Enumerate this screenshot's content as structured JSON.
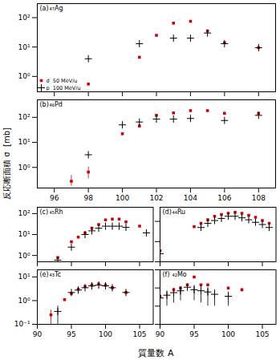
{
  "chart_data": [
    {
      "type": "scatter",
      "annotations": [
        "(a)",
        "₄₇Ag"
      ],
      "x_label": "質量数 A",
      "y_label": "反応断面積 σ  [mb]",
      "log": "y",
      "grid": false,
      "legend": "lower left",
      "tick_labels": "y",
      "xlim": [
        95,
        109
      ],
      "ylim": [
        0.3,
        300
      ],
      "xticks": [
        96,
        98,
        100,
        102,
        104,
        106,
        108
      ],
      "yticks": [
        {
          "value": 1,
          "label": "10⁰"
        },
        {
          "value": 10,
          "label": "10¹"
        },
        {
          "value": 100,
          "label": "10²"
        }
      ],
      "series": [
        {
          "name": "d  50 MeV/u",
          "color": "#cc0000",
          "marker": "square",
          "x": [
            98,
            101,
            102,
            103,
            104,
            105,
            106,
            108
          ],
          "values": [
            0.55,
            4.5,
            25,
            65,
            75,
            35,
            14,
            9.5
          ],
          "yerr_lo": [
            0,
            0,
            0,
            0,
            0,
            0,
            0,
            0
          ],
          "yerr_hi": [
            0,
            0,
            0,
            0,
            0,
            0,
            0,
            0
          ]
        },
        {
          "name": "p  100 MeV/u",
          "color": "#000000",
          "marker": "plus",
          "x": [
            98,
            101,
            103,
            104,
            105,
            106,
            108
          ],
          "values": [
            4.0,
            13,
            20,
            20,
            30,
            13,
            9.5
          ],
          "yerr_lo": [
            0,
            0,
            0,
            0,
            0,
            0,
            0
          ],
          "yerr_hi": [
            0,
            0,
            0,
            0,
            0,
            0,
            0
          ]
        }
      ]
    },
    {
      "type": "scatter",
      "annotations": [
        "(b)",
        "₄₆Pd"
      ],
      "log": "y",
      "grid": false,
      "xlim": [
        95,
        109
      ],
      "ylim": [
        0.15,
        500
      ],
      "xticks": [
        96,
        98,
        100,
        102,
        104,
        106,
        108
      ],
      "yticks": [
        {
          "value": 1,
          "label": "10⁰"
        },
        {
          "value": 10,
          "label": "10¹"
        },
        {
          "value": 100,
          "label": "10²"
        }
      ],
      "series": [
        {
          "name": "d  50 MeV/u",
          "color": "#cc0000",
          "marker": "square",
          "x": [
            97,
            98,
            100,
            101,
            102,
            103,
            104,
            105,
            106,
            108
          ],
          "values": [
            0.28,
            0.65,
            22,
            45,
            120,
            150,
            185,
            185,
            145,
            145
          ],
          "yerr_lo": [
            0.1,
            0.3,
            0,
            0,
            0,
            0,
            0,
            0,
            0,
            0
          ],
          "yerr_hi": [
            0.2,
            0.4,
            0,
            0,
            0,
            0,
            0,
            0,
            0,
            0
          ]
        },
        {
          "name": "p  100 MeV/u",
          "color": "#000000",
          "marker": "plus",
          "x": [
            98,
            100,
            101,
            102,
            103,
            104,
            106,
            108
          ],
          "values": [
            3.2,
            50,
            65,
            85,
            85,
            90,
            75,
            120
          ],
          "yerr_lo": [
            0,
            0,
            0,
            0,
            0,
            0,
            0,
            0
          ],
          "yerr_hi": [
            0,
            0,
            0,
            0,
            0,
            0,
            0,
            0
          ]
        }
      ]
    },
    {
      "type": "scatter",
      "annotations": [
        "(c)",
        "₄₅Rh"
      ],
      "log": "y",
      "grid": false,
      "tick_labels": "y",
      "xlim": [
        90,
        107
      ],
      "ylim": [
        0.5,
        200
      ],
      "xticks": [
        90,
        95,
        100,
        105
      ],
      "yticks": [
        {
          "value": 1,
          "label": "10⁰"
        },
        {
          "value": 10,
          "label": "10¹"
        },
        {
          "value": 100,
          "label": "10²"
        }
      ],
      "series": [
        {
          "name": "d  50 MeV/u",
          "color": "#cc0000",
          "marker": "square",
          "x": [
            93,
            95,
            96,
            97,
            98,
            99,
            100,
            101,
            102,
            103,
            105
          ],
          "values": [
            0.8,
            4.5,
            7.5,
            12,
            20,
            30,
            50,
            55,
            55,
            40,
            25
          ],
          "yerr_lo": [
            0,
            0,
            0,
            0,
            0,
            0,
            0,
            0,
            0,
            0,
            0
          ],
          "yerr_hi": [
            0,
            0,
            0,
            0,
            0,
            0,
            0,
            0,
            0,
            0,
            0
          ]
        },
        {
          "name": "p  100 MeV/u",
          "color": "#000000",
          "marker": "plus",
          "x": [
            93,
            95,
            97,
            98,
            99,
            100,
            101,
            102,
            103,
            106
          ],
          "values": [
            0.6,
            2.5,
            10,
            15,
            20,
            25,
            25,
            25,
            22,
            12
          ],
          "yerr_lo": [
            0,
            0,
            0,
            0,
            0,
            0,
            0,
            0,
            0,
            0
          ],
          "yerr_hi": [
            0,
            0,
            0,
            0,
            0,
            0,
            0,
            0,
            0,
            0
          ]
        }
      ]
    },
    {
      "type": "scatter",
      "annotations": [
        "(d)",
        "₄₄Ru"
      ],
      "log": "y",
      "grid": false,
      "tick_labels": false,
      "xlim": [
        90,
        107
      ],
      "ylim": [
        0.1,
        50
      ],
      "xticks": [
        90,
        95,
        100,
        105
      ],
      "yticks": [
        0.1,
        1,
        10
      ],
      "series": [
        {
          "name": "d  50 MeV/u",
          "color": "#cc0000",
          "marker": "square",
          "x": [
            90,
            95,
            96,
            97,
            98,
            99,
            100,
            101,
            102,
            103,
            104,
            105,
            106
          ],
          "values": [
            0.35,
            5.5,
            8,
            12,
            18,
            22,
            25,
            28,
            25,
            20,
            16,
            11,
            8
          ],
          "yerr_lo": [
            0.2,
            0,
            0,
            0,
            0,
            0,
            0,
            0,
            0,
            0,
            0,
            0,
            0
          ],
          "yerr_hi": [
            0.2,
            0,
            0,
            0,
            0,
            0,
            0,
            0,
            0,
            0,
            0,
            0,
            0
          ]
        },
        {
          "name": "p  100 MeV/u",
          "color": "#000000",
          "marker": "plus",
          "x": [
            90,
            96,
            97,
            98,
            99,
            100,
            101,
            102,
            103,
            104,
            105,
            106
          ],
          "values": [
            0.25,
            5.0,
            8,
            11,
            14,
            18,
            18,
            15,
            12,
            9,
            7,
            5
          ],
          "yerr_lo": [
            0.15,
            0,
            0,
            0,
            0,
            0,
            0,
            0,
            0,
            0,
            0,
            0
          ],
          "yerr_hi": [
            0.15,
            0,
            0,
            0,
            0,
            0,
            0,
            0,
            0,
            0,
            0,
            0
          ]
        }
      ]
    },
    {
      "type": "scatter",
      "annotations": [
        "(e)",
        "₄₃Tc"
      ],
      "log": "y",
      "grid": false,
      "xlim": [
        90,
        107
      ],
      "ylim": [
        0.1,
        20
      ],
      "xticks": [
        90,
        95,
        100,
        105
      ],
      "yticks": [
        {
          "value": 0.1,
          "label": "10⁻¹"
        },
        {
          "value": 1,
          "label": "10⁰"
        },
        {
          "value": 10,
          "label": "10¹"
        }
      ],
      "series": [
        {
          "name": "d  50 MeV/u",
          "color": "#cc0000",
          "marker": "square",
          "x": [
            92,
            94,
            95,
            96,
            97,
            98,
            99,
            100,
            101,
            103
          ],
          "values": [
            0.25,
            1.1,
            2.0,
            3.0,
            4.0,
            4.5,
            5.0,
            4.5,
            3.5,
            2.2
          ],
          "yerr_lo": [
            0.15,
            0,
            0,
            0,
            0,
            0,
            0,
            0,
            0,
            0
          ],
          "yerr_hi": [
            0.15,
            0,
            0,
            0,
            0,
            0,
            0,
            0,
            0,
            0
          ]
        },
        {
          "name": "p  100 MeV/u",
          "color": "#000000",
          "marker": "plus",
          "x": [
            93,
            95,
            96,
            97,
            98,
            99,
            100,
            101,
            103
          ],
          "values": [
            0.35,
            2.2,
            2.8,
            3.5,
            4.2,
            4.5,
            4.2,
            3.5,
            2.2
          ],
          "yerr_lo": [
            0.25,
            0,
            0,
            0,
            0,
            0,
            0,
            0,
            0
          ],
          "yerr_hi": [
            0.25,
            0,
            0,
            0,
            0,
            0,
            0,
            0,
            0
          ]
        }
      ]
    },
    {
      "type": "scatter",
      "annotations": [
        "(f)",
        "₄₂Mo"
      ],
      "log": "y",
      "grid": false,
      "tick_labels": "x",
      "xlim": [
        90,
        107
      ],
      "ylim": [
        0.01,
        10
      ],
      "xticks": [
        90,
        95,
        100,
        105
      ],
      "yticks": [
        0.01,
        0.1,
        1,
        10
      ],
      "series": [
        {
          "name": "d  50 MeV/u",
          "color": "#cc0000",
          "marker": "square",
          "x": [
            90,
            92,
            93,
            94,
            95,
            96,
            97,
            100,
            102
          ],
          "values": [
            0.35,
            0.8,
            1.0,
            1.5,
            4.0,
            1.5,
            1.5,
            1.0,
            0.8
          ],
          "yerr_lo": [
            0.2,
            0,
            0,
            0,
            0,
            0,
            0,
            0,
            0
          ],
          "yerr_hi": [
            0.2,
            0,
            0,
            0,
            0,
            0,
            0,
            0,
            0
          ]
        },
        {
          "name": "p  100 MeV/u",
          "color": "#000000",
          "marker": "plus",
          "x": [
            90,
            91,
            92,
            93,
            94,
            95,
            96,
            97,
            98,
            100
          ],
          "values": [
            0.28,
            0.4,
            0.55,
            0.7,
            1.1,
            0.8,
            0.7,
            0.6,
            0.45,
            0.35
          ],
          "yerr_lo": [
            0.2,
            0.3,
            0.4,
            0.5,
            0,
            0.6,
            0.55,
            0.5,
            0.35,
            0.25
          ],
          "yerr_hi": [
            0.2,
            0.3,
            0.4,
            0.5,
            0,
            0.6,
            0.55,
            0.5,
            0.35,
            0.25
          ]
        }
      ]
    }
  ]
}
